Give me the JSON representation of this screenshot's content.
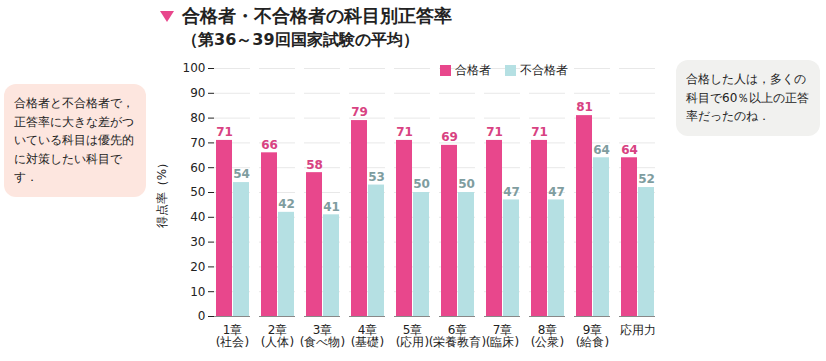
{
  "chart_data": {
    "type": "bar",
    "title": "合格者・不合格者の科目別正答率",
    "subtitle": "（第36～39回国家試験の平均）",
    "y_label": "得点率（%）",
    "categories": [
      "1章\n(社会)",
      "2章\n(人体)",
      "3章\n(食べ物)",
      "4章\n(基礎)",
      "5章\n(応用)",
      "6章\n(栄養教育)",
      "7章\n(臨床)",
      "8章\n(公衆)",
      "9章\n(給食)",
      "応用力"
    ],
    "series": [
      {
        "name": "合格者",
        "color": "#e8478c",
        "values": [
          71,
          66,
          58,
          79,
          71,
          69,
          71,
          71,
          81,
          64
        ]
      },
      {
        "name": "不合格者",
        "color": "#b5e0e3",
        "values": [
          54,
          42,
          41,
          53,
          50,
          50,
          47,
          47,
          64,
          52
        ]
      }
    ],
    "ylim": [
      0,
      100
    ],
    "yticks": [
      0,
      10,
      20,
      30,
      40,
      50,
      60,
      70,
      80,
      90,
      100
    ],
    "grid": true,
    "legend": "top-right",
    "data_labels": true,
    "annotations": [
      "合格者と不合格者で，正答率に大きな差がついている科目は優先的に対策したい科目です．",
      "合格した人は，多くの科目で60％以上の正答率だったのね．"
    ]
  }
}
